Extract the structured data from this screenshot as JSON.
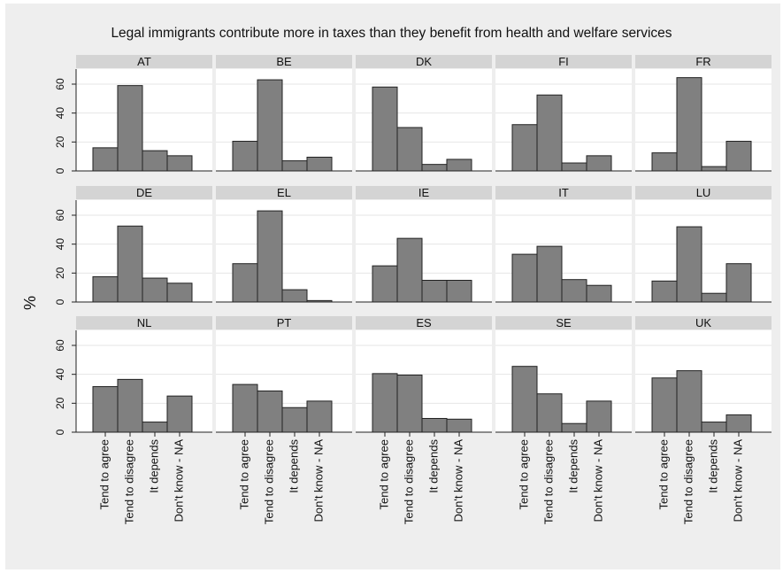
{
  "chart_data": {
    "type": "bar",
    "title": "Legal immigrants contribute more in taxes than they benefit from health and welfare services",
    "ylabel": "%",
    "xlabel": "",
    "ylim": [
      0,
      70
    ],
    "yticks": [
      0,
      20,
      40,
      60
    ],
    "categories": [
      "Tend to agree",
      "Tend to disagree",
      "It depends",
      "Don't know - NA"
    ],
    "bar_color": "#808080",
    "panel_header_color": "#d4d4d4",
    "background_color": "#eeeeee",
    "panels": [
      {
        "name": "AT",
        "values": [
          16,
          59,
          14,
          10.5
        ]
      },
      {
        "name": "BE",
        "values": [
          20.5,
          63,
          7,
          9.5
        ]
      },
      {
        "name": "DK",
        "values": [
          58,
          30,
          4.5,
          8
        ]
      },
      {
        "name": "FI",
        "values": [
          32,
          52.5,
          5.5,
          10.5
        ]
      },
      {
        "name": "FR",
        "values": [
          12.5,
          64.5,
          3,
          20.5
        ]
      },
      {
        "name": "DE",
        "values": [
          17.5,
          52.5,
          16.5,
          13
        ]
      },
      {
        "name": "EL",
        "values": [
          26.5,
          63,
          8.5,
          1
        ]
      },
      {
        "name": "IE",
        "values": [
          25,
          44,
          15,
          15
        ]
      },
      {
        "name": "IT",
        "values": [
          33,
          38.5,
          15.5,
          11.5
        ]
      },
      {
        "name": "LU",
        "values": [
          14.5,
          52,
          6,
          26.5
        ]
      },
      {
        "name": "NL",
        "values": [
          31.5,
          36.5,
          7,
          25
        ]
      },
      {
        "name": "PT",
        "values": [
          33,
          28.5,
          17,
          21.5
        ]
      },
      {
        "name": "ES",
        "values": [
          40.5,
          39.5,
          9.5,
          9
        ]
      },
      {
        "name": "SE",
        "values": [
          45.5,
          26.5,
          6,
          21.5
        ]
      },
      {
        "name": "UK",
        "values": [
          37.5,
          42.5,
          7,
          12
        ]
      }
    ]
  }
}
